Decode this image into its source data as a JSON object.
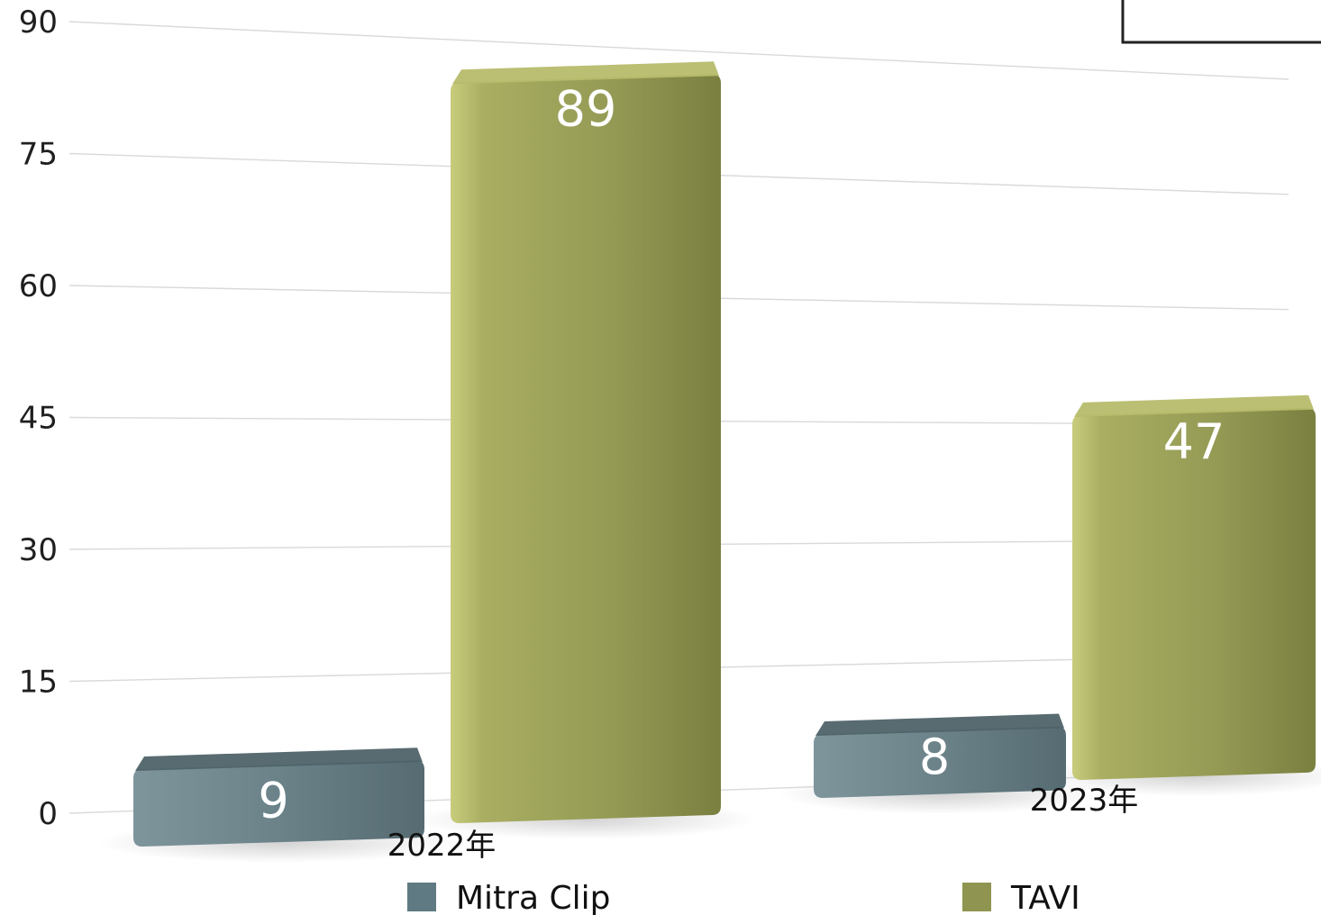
{
  "chart_data": {
    "type": "bar",
    "categories": [
      "2022年",
      "2023年"
    ],
    "series": [
      {
        "name": "Mitra Clip",
        "values": [
          9,
          8
        ],
        "color": "#5f7a82"
      },
      {
        "name": "TAVI",
        "values": [
          89,
          47
        ],
        "color": "#8f9550"
      }
    ],
    "yticks": [
      "0",
      "15",
      "30",
      "45",
      "60",
      "75",
      "90"
    ],
    "ylim": [
      0,
      90
    ],
    "grid": true,
    "legend_position": "bottom",
    "data_labels": true,
    "title": "",
    "xlabel": "",
    "ylabel": ""
  }
}
